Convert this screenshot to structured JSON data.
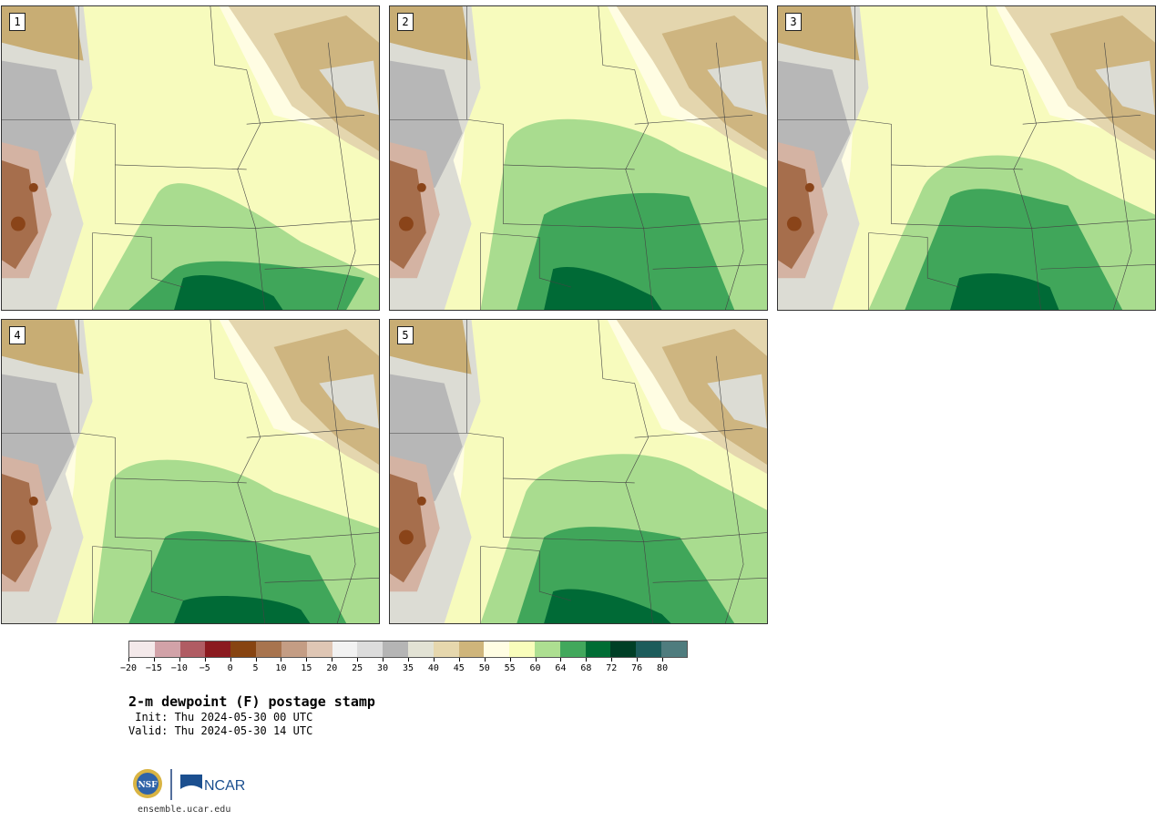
{
  "panels": [
    {
      "label": "1"
    },
    {
      "label": "2"
    },
    {
      "label": "3"
    },
    {
      "label": "4"
    },
    {
      "label": "5"
    }
  ],
  "colorbar": {
    "colors": [
      "#f4e9ea",
      "#d2a2a8",
      "#b05c63",
      "#8b1a1f",
      "#874411",
      "#a8744e",
      "#c49d84",
      "#dfc6b4",
      "#f2f2f2",
      "#dcdcdc",
      "#b5b5b5",
      "#e2e2d4",
      "#e6d7ad",
      "#cfb57b",
      "#fffde3",
      "#f9fdbb",
      "#addf91",
      "#42a85c",
      "#006d34",
      "#003f26",
      "#1c5c5b",
      "#4f7c7e"
    ],
    "tick_labels": [
      "−20",
      "−15",
      "−10",
      "−5",
      "0",
      "5",
      "10",
      "15",
      "20",
      "25",
      "30",
      "35",
      "40",
      "45",
      "50",
      "55",
      "60",
      "64",
      "68",
      "72",
      "76",
      "80"
    ]
  },
  "title": "2-m dewpoint (F) postage stamp",
  "init": " Init: Thu 2024-05-30 00 UTC",
  "valid": "Valid: Thu 2024-05-30 14 UTC",
  "logos": {
    "nsf": "NSF",
    "ncar": "NCAR"
  },
  "url": "ensemble.ucar.edu"
}
